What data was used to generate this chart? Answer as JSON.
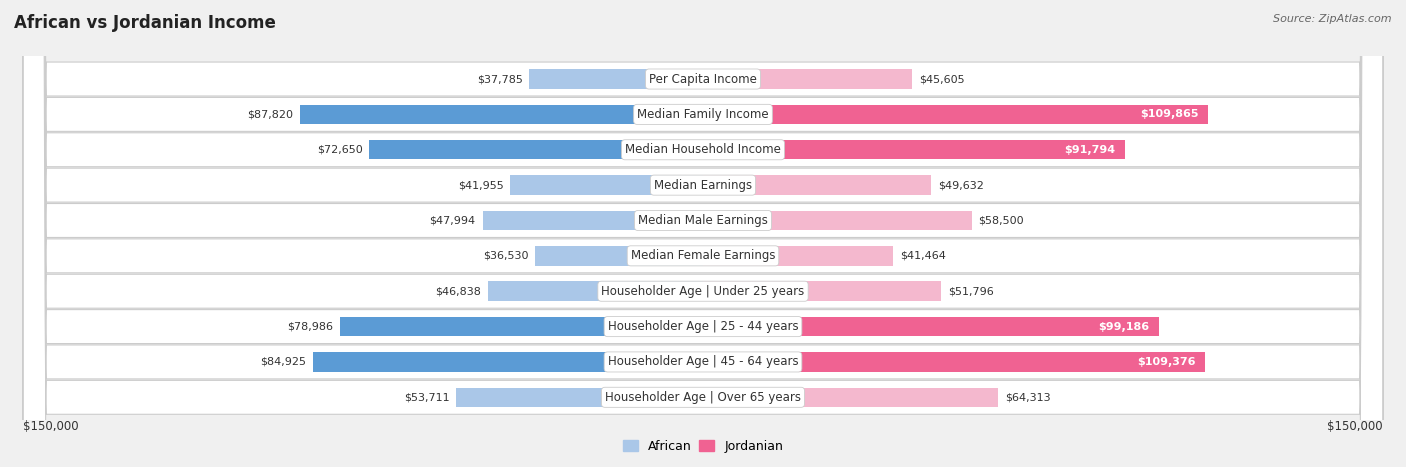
{
  "title": "African vs Jordanian Income",
  "source": "Source: ZipAtlas.com",
  "categories": [
    "Per Capita Income",
    "Median Family Income",
    "Median Household Income",
    "Median Earnings",
    "Median Male Earnings",
    "Median Female Earnings",
    "Householder Age | Under 25 years",
    "Householder Age | 25 - 44 years",
    "Householder Age | 45 - 64 years",
    "Householder Age | Over 65 years"
  ],
  "african_values": [
    37785,
    87820,
    72650,
    41955,
    47994,
    36530,
    46838,
    78986,
    84925,
    53711
  ],
  "jordanian_values": [
    45605,
    109865,
    91794,
    49632,
    58500,
    41464,
    51796,
    99186,
    109376,
    64313
  ],
  "african_color_light": "#aac7e8",
  "african_color_dark": "#5b9bd5",
  "jordanian_color_light": "#f4b8ce",
  "jordanian_color_dark": "#f06292",
  "axis_max": 150000,
  "background_color": "#f0f0f0",
  "row_bg_color": "#ffffff",
  "row_border_color": "#cccccc",
  "title_fontsize": 12,
  "label_fontsize": 8.5,
  "value_fontsize": 8,
  "source_fontsize": 8,
  "legend_fontsize": 9,
  "bar_height": 0.55,
  "axis_label_left": "$150,000",
  "axis_label_right": "$150,000"
}
